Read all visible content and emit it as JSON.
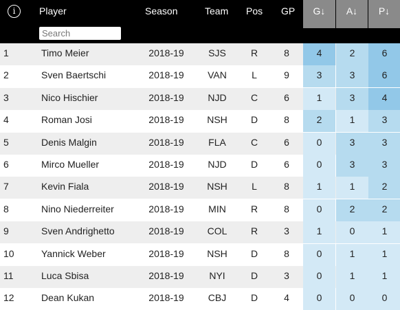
{
  "header": {
    "info_glyph": "i",
    "player": "Player",
    "season": "Season",
    "team": "Team",
    "pos": "Pos",
    "gp": "GP",
    "g": "G↓",
    "a": "A↓",
    "p": "P↓",
    "search_placeholder": "Search"
  },
  "colors": {
    "header_bg": "#000000",
    "stat_header_bg": "#8a8a8a",
    "row_odd": "#eeeeee",
    "row_even": "#ffffff",
    "stat_light": "#d3e9f6",
    "stat_mid": "#b6dbef",
    "stat_dark": "#92c8e8"
  },
  "rows": [
    {
      "rank": "1",
      "player": "Timo Meier",
      "season": "2018-19",
      "team": "SJS",
      "pos": "R",
      "gp": "8",
      "g": "4",
      "a": "2",
      "p": "6"
    },
    {
      "rank": "2",
      "player": "Sven Baertschi",
      "season": "2018-19",
      "team": "VAN",
      "pos": "L",
      "gp": "9",
      "g": "3",
      "a": "3",
      "p": "6"
    },
    {
      "rank": "3",
      "player": "Nico Hischier",
      "season": "2018-19",
      "team": "NJD",
      "pos": "C",
      "gp": "6",
      "g": "1",
      "a": "3",
      "p": "4"
    },
    {
      "rank": "4",
      "player": "Roman Josi",
      "season": "2018-19",
      "team": "NSH",
      "pos": "D",
      "gp": "8",
      "g": "2",
      "a": "1",
      "p": "3"
    },
    {
      "rank": "5",
      "player": "Denis Malgin",
      "season": "2018-19",
      "team": "FLA",
      "pos": "C",
      "gp": "6",
      "g": "0",
      "a": "3",
      "p": "3"
    },
    {
      "rank": "6",
      "player": "Mirco Mueller",
      "season": "2018-19",
      "team": "NJD",
      "pos": "D",
      "gp": "6",
      "g": "0",
      "a": "3",
      "p": "3"
    },
    {
      "rank": "7",
      "player": "Kevin Fiala",
      "season": "2018-19",
      "team": "NSH",
      "pos": "L",
      "gp": "8",
      "g": "1",
      "a": "1",
      "p": "2"
    },
    {
      "rank": "8",
      "player": "Nino Niederreiter",
      "season": "2018-19",
      "team": "MIN",
      "pos": "R",
      "gp": "8",
      "g": "0",
      "a": "2",
      "p": "2"
    },
    {
      "rank": "9",
      "player": "Sven Andrighetto",
      "season": "2018-19",
      "team": "COL",
      "pos": "R",
      "gp": "3",
      "g": "1",
      "a": "0",
      "p": "1"
    },
    {
      "rank": "10",
      "player": "Yannick Weber",
      "season": "2018-19",
      "team": "NSH",
      "pos": "D",
      "gp": "8",
      "g": "0",
      "a": "1",
      "p": "1"
    },
    {
      "rank": "11",
      "player": "Luca Sbisa",
      "season": "2018-19",
      "team": "NYI",
      "pos": "D",
      "gp": "3",
      "g": "0",
      "a": "1",
      "p": "1"
    },
    {
      "rank": "12",
      "player": "Dean Kukan",
      "season": "2018-19",
      "team": "CBJ",
      "pos": "D",
      "gp": "4",
      "g": "0",
      "a": "0",
      "p": "0"
    }
  ]
}
